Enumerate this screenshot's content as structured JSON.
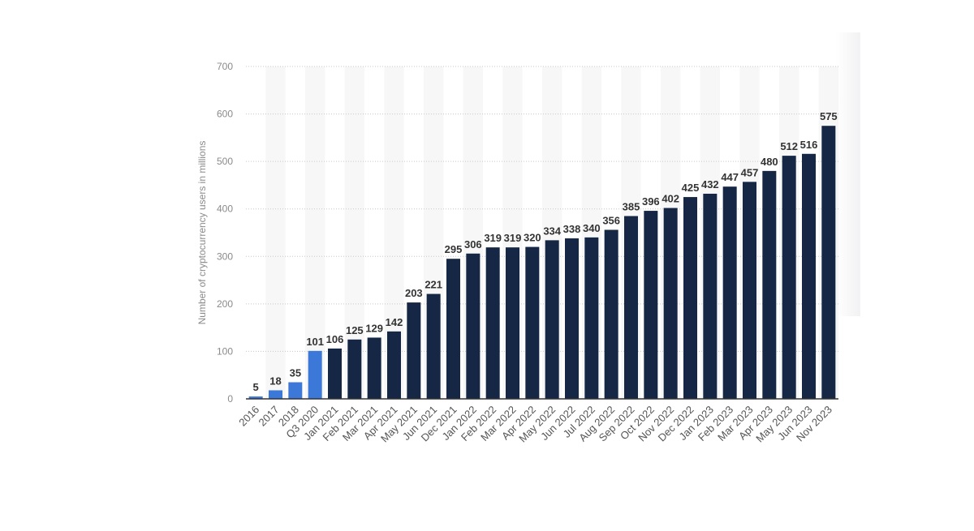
{
  "chart_data": {
    "type": "bar",
    "ylabel": "Number of cryptocurrency users in millions",
    "xlabel": "",
    "title": "",
    "ylim": [
      0,
      700
    ],
    "yticks": [
      0,
      100,
      200,
      300,
      400,
      500,
      600,
      700
    ],
    "grid": true,
    "categories": [
      "2016",
      "2017",
      "2018",
      "Q3 2020",
      "Jan 2021",
      "Feb 2021",
      "Mar 2021",
      "Apr 2021",
      "May 2021",
      "Jun 2021",
      "Dec 2021",
      "Jan 2022",
      "Feb 2022",
      "Mar 2022",
      "Apr 2022",
      "May 2022",
      "Jun 2022",
      "Jul 2022",
      "Aug 2022",
      "Sep 2022",
      "Oct 2022",
      "Nov 2022",
      "Dec 2022",
      "Jan 2023",
      "Feb 2023",
      "Mar 2023",
      "Apr 2023",
      "May 2023",
      "Jun 2023",
      "Nov 2023"
    ],
    "values": [
      5,
      18,
      35,
      101,
      106,
      125,
      129,
      142,
      203,
      221,
      295,
      306,
      319,
      319,
      320,
      334,
      338,
      340,
      356,
      385,
      396,
      402,
      425,
      432,
      447,
      457,
      480,
      512,
      516,
      575
    ],
    "colors": {
      "early": "#3c78d8",
      "main": "#152744",
      "early_count": 4
    }
  }
}
